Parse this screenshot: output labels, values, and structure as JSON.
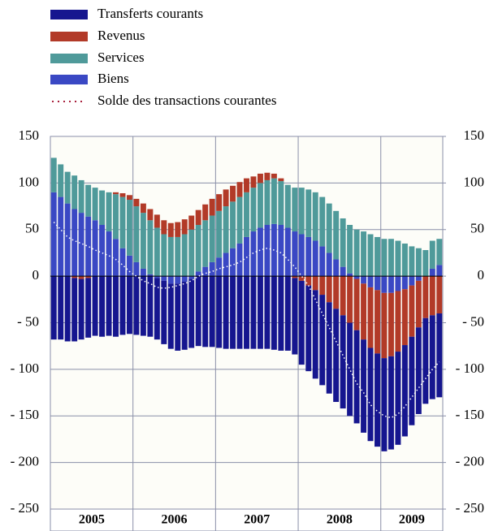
{
  "chart_data": {
    "type": "bar",
    "stacked": true,
    "categories": [
      null,
      null,
      null,
      null,
      null,
      null,
      null,
      null,
      null,
      null,
      null,
      null,
      null,
      null,
      null,
      null,
      null,
      null,
      null,
      null,
      null,
      null,
      null,
      null,
      null,
      null,
      null,
      null,
      null,
      null,
      null,
      null,
      null,
      null,
      null,
      null,
      null,
      null,
      null,
      null,
      null,
      null,
      null,
      null,
      null,
      null,
      null,
      null,
      null,
      null,
      null,
      null,
      null,
      null,
      null,
      null,
      null
    ],
    "year_labels": [
      "2005",
      "2006",
      "2007",
      "2008",
      "2009"
    ],
    "series": [
      {
        "name": "Transferts courants",
        "color": "#16168f",
        "values": [
          -68,
          -68,
          -70,
          -68,
          -65,
          -64,
          -64,
          -65,
          -64,
          -65,
          -63,
          -62,
          -63,
          -64,
          -65,
          -66,
          -68,
          -70,
          -72,
          -73,
          -74,
          -75,
          -76,
          -76,
          -77,
          -78,
          -78,
          -78,
          -78,
          -78,
          -78,
          -78,
          -79,
          -80,
          -80,
          -82,
          -90,
          -92,
          -95,
          -97,
          -98,
          -100,
          -100,
          -100,
          -100,
          -100,
          -100,
          -100,
          -100,
          -100,
          -100,
          -98,
          -95,
          -93,
          -92,
          -90,
          -90
        ]
      },
      {
        "name": "Revenus",
        "color": "#b23a28",
        "values": [
          0,
          0,
          0,
          -2,
          -3,
          -2,
          0,
          0,
          0,
          2,
          4,
          5,
          8,
          10,
          12,
          14,
          15,
          15,
          16,
          16,
          15,
          16,
          17,
          18,
          18,
          18,
          17,
          16,
          15,
          12,
          10,
          8,
          5,
          3,
          0,
          -2,
          -5,
          -10,
          -15,
          -20,
          -28,
          -35,
          -42,
          -50,
          -55,
          -60,
          -65,
          -68,
          -70,
          -68,
          -65,
          -60,
          -55,
          -50,
          -45,
          -42,
          -40
        ]
      },
      {
        "name": "Services",
        "color": "#4f9a9a",
        "values": [
          37,
          35,
          34,
          36,
          35,
          34,
          35,
          37,
          42,
          48,
          55,
          60,
          60,
          60,
          58,
          52,
          45,
          42,
          42,
          45,
          50,
          50,
          50,
          50,
          50,
          50,
          50,
          50,
          48,
          47,
          48,
          48,
          49,
          47,
          46,
          47,
          50,
          51,
          52,
          53,
          53,
          52,
          52,
          52,
          50,
          48,
          45,
          42,
          40,
          40,
          38,
          35,
          32,
          30,
          28,
          30,
          28
        ]
      },
      {
        "name": "Biens",
        "color": "#3a48c4",
        "values": [
          90,
          85,
          78,
          72,
          68,
          64,
          60,
          55,
          48,
          40,
          30,
          22,
          15,
          8,
          2,
          -2,
          -5,
          -8,
          -8,
          -6,
          -3,
          5,
          10,
          15,
          20,
          25,
          30,
          35,
          42,
          48,
          52,
          55,
          56,
          55,
          52,
          48,
          45,
          42,
          38,
          32,
          25,
          18,
          10,
          3,
          -3,
          -8,
          -12,
          -15,
          -18,
          -18,
          -16,
          -14,
          -10,
          -5,
          0,
          8,
          12
        ]
      },
      {
        "name": "Solde des transactions courantes",
        "type": "line",
        "style": "dotted",
        "color": "#a8203c",
        "values": [
          58,
          50,
          42,
          38,
          35,
          32,
          28,
          25,
          22,
          18,
          12,
          5,
          0,
          -5,
          -8,
          -12,
          -13,
          -12,
          -10,
          -8,
          -5,
          0,
          3,
          5,
          8,
          10,
          12,
          15,
          20,
          25,
          28,
          30,
          28,
          25,
          18,
          10,
          0,
          -10,
          -25,
          -40,
          -55,
          -70,
          -85,
          -100,
          -115,
          -125,
          -138,
          -145,
          -150,
          -152,
          -148,
          -140,
          -130,
          -120,
          -110,
          -100,
          -92
        ]
      }
    ],
    "ylim": [
      -250,
      150
    ],
    "yticks": [
      {
        "value": -250,
        "label": "- 250"
      },
      {
        "value": -200,
        "label": "- 200"
      },
      {
        "value": -150,
        "label": "- 150"
      },
      {
        "value": -100,
        "label": "- 100"
      },
      {
        "value": -50,
        "label": "- 50"
      },
      0,
      50,
      100,
      150
    ],
    "y2lim": [
      -250,
      150
    ],
    "y2ticks": [
      {
        "value": -250,
        "label": "- 250"
      },
      {
        "value": -200,
        "label": "- 200"
      },
      {
        "value": -150,
        "label": "- 150"
      },
      {
        "value": -100,
        "label": "- 100"
      },
      {
        "value": -50,
        "label": "- 50"
      },
      0,
      50,
      100,
      150
    ],
    "grid": true
  }
}
